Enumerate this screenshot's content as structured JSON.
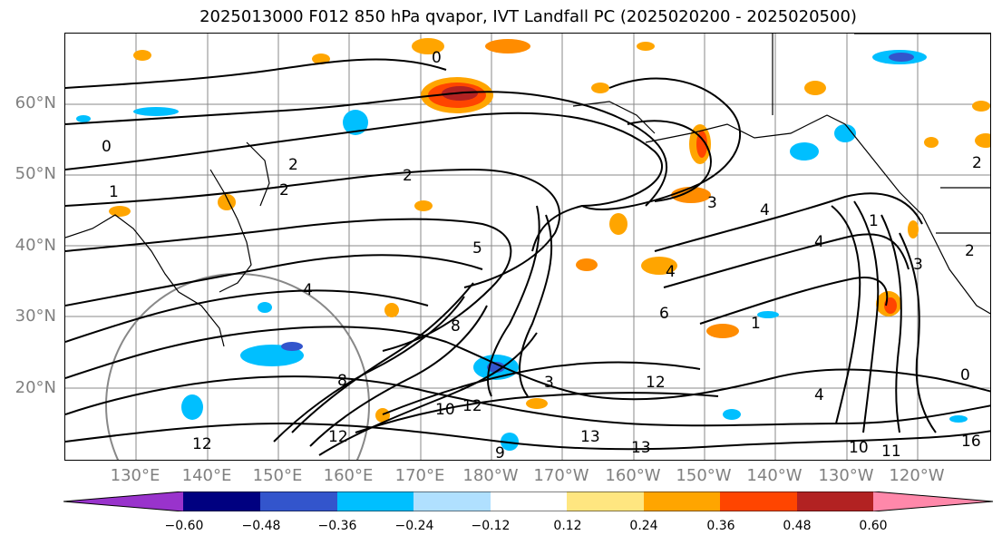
{
  "title": "2025013000 F012 850 hPa qvapor, IVT Landfall PC (2025020200 - 2025020500)",
  "lat_labels": [
    "60°N",
    "50°N",
    "40°N",
    "30°N",
    "20°N"
  ],
  "lon_labels": [
    "130°E",
    "140°E",
    "150°E",
    "160°E",
    "170°E",
    "180°W",
    "170°W",
    "160°W",
    "150°W",
    "140°W",
    "130°W",
    "120°W"
  ],
  "colorbar": {
    "colors": [
      "#9933cc",
      "#000080",
      "#3355cc",
      "#00bfff",
      "#b0e0ff",
      "#ffffff",
      "#ffe680",
      "#ffa500",
      "#ff4500",
      "#b22222",
      "#ff88aa"
    ],
    "tick_labels": [
      "−0.60",
      "−0.48",
      "−0.36",
      "−0.24",
      "−0.12",
      "0.12",
      "0.24",
      "0.36",
      "0.48",
      "0.60"
    ]
  },
  "contour_labels": [
    "0",
    "0",
    "1",
    "2",
    "2",
    "2",
    "4",
    "4",
    "5",
    "6",
    "3",
    "4",
    "8",
    "10",
    "12",
    "13",
    "13",
    "12",
    "11",
    "10",
    "12",
    "16",
    "9",
    "1",
    "3",
    "2",
    "0",
    "4",
    "3",
    "2",
    "1",
    "4",
    "12",
    "8"
  ]
}
